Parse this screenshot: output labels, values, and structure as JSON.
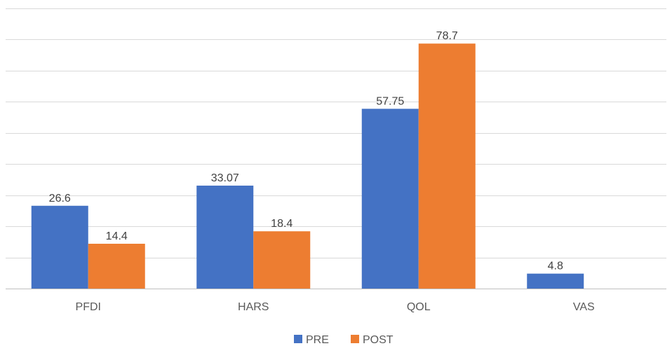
{
  "chart_data": {
    "type": "bar",
    "title": "",
    "xlabel": "",
    "ylabel": "",
    "categories": [
      "PFDI",
      "HARS",
      "QOL",
      "VAS"
    ],
    "series": [
      {
        "name": "PRE",
        "color": "#4472C4",
        "values": [
          26.6,
          33.07,
          57.75,
          4.8
        ]
      },
      {
        "name": "POST",
        "color": "#ED7D31",
        "values": [
          14.4,
          18.4,
          78.7,
          null
        ]
      }
    ],
    "data_labels": [
      [
        "26.6",
        "33.07",
        "57.75",
        "4.8"
      ],
      [
        "14.4",
        "18.4",
        "78.7",
        ""
      ]
    ],
    "ylim": [
      0,
      90
    ],
    "y_gridline_step": 10,
    "y_tick_labels_shown": false,
    "grid": true,
    "legend_position": "bottom"
  }
}
